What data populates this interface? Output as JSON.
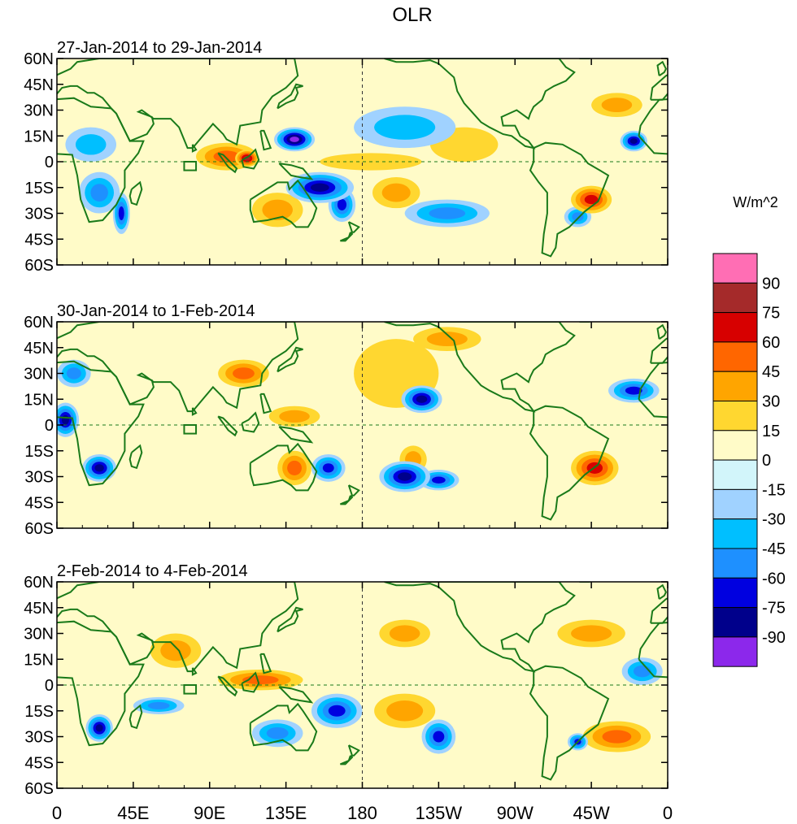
{
  "figure": {
    "title": "OLR",
    "colorbar_title": "W/m^2",
    "x_tick_labels": [
      "0",
      "45E",
      "90E",
      "135E",
      "180",
      "135W",
      "90W",
      "45W",
      "0"
    ],
    "y_tick_labels": [
      "60N",
      "45N",
      "30N",
      "15N",
      "0",
      "15S",
      "30S",
      "45S",
      "60S"
    ]
  },
  "chart_data": {
    "type": "heatmap",
    "variable": "OLR anomaly",
    "units": "W/m^2",
    "xlim_lon_east": [
      0,
      360
    ],
    "ylim_lat": [
      -60,
      60
    ],
    "x_ticks": [
      0,
      45,
      90,
      135,
      180,
      225,
      270,
      315,
      360
    ],
    "y_ticks": [
      60,
      45,
      30,
      15,
      0,
      -15,
      -30,
      -45,
      -60
    ],
    "panels": [
      {
        "subtitle": "27-Jan-2014 to 29-Jan-2014",
        "anomalies": [
          {
            "lon": 25,
            "lat": -18,
            "value": -45,
            "rx": 12,
            "ry": 12
          },
          {
            "lon": 38,
            "lat": -30,
            "value": -60,
            "rx": 5,
            "ry": 12
          },
          {
            "lon": 20,
            "lat": 10,
            "value": -30,
            "rx": 15,
            "ry": 10
          },
          {
            "lon": 100,
            "lat": 3,
            "value": 45,
            "rx": 18,
            "ry": 8
          },
          {
            "lon": 112,
            "lat": 2,
            "value": 75,
            "rx": 7,
            "ry": 5
          },
          {
            "lon": 140,
            "lat": 13,
            "value": -90,
            "rx": 12,
            "ry": 7
          },
          {
            "lon": 155,
            "lat": -15,
            "value": -75,
            "rx": 20,
            "ry": 9
          },
          {
            "lon": 168,
            "lat": -25,
            "value": -60,
            "rx": 8,
            "ry": 10
          },
          {
            "lon": 130,
            "lat": -28,
            "value": 30,
            "rx": 15,
            "ry": 10
          },
          {
            "lon": 200,
            "lat": -18,
            "value": 30,
            "rx": 14,
            "ry": 9
          },
          {
            "lon": 185,
            "lat": 0,
            "value": 15,
            "rx": 30,
            "ry": 5
          },
          {
            "lon": 230,
            "lat": -30,
            "value": -45,
            "rx": 25,
            "ry": 8
          },
          {
            "lon": 205,
            "lat": 20,
            "value": -30,
            "rx": 30,
            "ry": 12
          },
          {
            "lon": 240,
            "lat": 10,
            "value": 15,
            "rx": 20,
            "ry": 10
          },
          {
            "lon": 315,
            "lat": -22,
            "value": 60,
            "rx": 12,
            "ry": 8
          },
          {
            "lon": 307,
            "lat": -32,
            "value": -45,
            "rx": 8,
            "ry": 6
          },
          {
            "lon": 340,
            "lat": 12,
            "value": -75,
            "rx": 8,
            "ry": 6
          },
          {
            "lon": 330,
            "lat": 33,
            "value": 30,
            "rx": 15,
            "ry": 7
          }
        ]
      },
      {
        "subtitle": "30-Jan-2014 to 1-Feb-2014",
        "anomalies": [
          {
            "lon": 5,
            "lat": 3,
            "value": -75,
            "rx": 8,
            "ry": 10
          },
          {
            "lon": 25,
            "lat": -25,
            "value": -75,
            "rx": 10,
            "ry": 8
          },
          {
            "lon": 10,
            "lat": 30,
            "value": -45,
            "rx": 10,
            "ry": 8
          },
          {
            "lon": 110,
            "lat": 30,
            "value": 45,
            "rx": 15,
            "ry": 8
          },
          {
            "lon": 140,
            "lat": -25,
            "value": 45,
            "rx": 10,
            "ry": 10
          },
          {
            "lon": 160,
            "lat": -25,
            "value": -60,
            "rx": 10,
            "ry": 8
          },
          {
            "lon": 205,
            "lat": -30,
            "value": -75,
            "rx": 15,
            "ry": 9
          },
          {
            "lon": 225,
            "lat": -32,
            "value": -60,
            "rx": 12,
            "ry": 6
          },
          {
            "lon": 210,
            "lat": -20,
            "value": 30,
            "rx": 8,
            "ry": 8
          },
          {
            "lon": 215,
            "lat": 15,
            "value": -75,
            "rx": 12,
            "ry": 8
          },
          {
            "lon": 200,
            "lat": 30,
            "value": 15,
            "rx": 25,
            "ry": 20
          },
          {
            "lon": 230,
            "lat": 50,
            "value": 30,
            "rx": 20,
            "ry": 7
          },
          {
            "lon": 317,
            "lat": -25,
            "value": 60,
            "rx": 14,
            "ry": 10
          },
          {
            "lon": 340,
            "lat": 20,
            "value": -60,
            "rx": 15,
            "ry": 7
          },
          {
            "lon": 140,
            "lat": 5,
            "value": 30,
            "rx": 15,
            "ry": 6
          }
        ]
      },
      {
        "subtitle": "2-Feb-2014 to 4-Feb-2014",
        "anomalies": [
          {
            "lon": 25,
            "lat": -25,
            "value": -75,
            "rx": 8,
            "ry": 8
          },
          {
            "lon": 60,
            "lat": -12,
            "value": -45,
            "rx": 15,
            "ry": 5
          },
          {
            "lon": 120,
            "lat": 3,
            "value": 45,
            "rx": 25,
            "ry": 6
          },
          {
            "lon": 165,
            "lat": -15,
            "value": -60,
            "rx": 15,
            "ry": 10
          },
          {
            "lon": 130,
            "lat": -28,
            "value": -45,
            "rx": 15,
            "ry": 8
          },
          {
            "lon": 225,
            "lat": -30,
            "value": -60,
            "rx": 10,
            "ry": 10
          },
          {
            "lon": 205,
            "lat": -15,
            "value": 30,
            "rx": 18,
            "ry": 10
          },
          {
            "lon": 205,
            "lat": 30,
            "value": 30,
            "rx": 15,
            "ry": 8
          },
          {
            "lon": 315,
            "lat": 30,
            "value": 30,
            "rx": 20,
            "ry": 8
          },
          {
            "lon": 330,
            "lat": -30,
            "value": 45,
            "rx": 20,
            "ry": 9
          },
          {
            "lon": 307,
            "lat": -33,
            "value": -60,
            "rx": 6,
            "ry": 5
          },
          {
            "lon": 345,
            "lat": 8,
            "value": -45,
            "rx": 12,
            "ry": 8
          },
          {
            "lon": 70,
            "lat": 20,
            "value": 30,
            "rx": 15,
            "ry": 10
          }
        ]
      }
    ],
    "colorbar": {
      "labels": [
        "90",
        "75",
        "60",
        "45",
        "30",
        "15",
        "0",
        "-15",
        "-30",
        "-45",
        "-60",
        "-75",
        "-90"
      ],
      "colors": [
        "#ff6eb4",
        "#a52a2a",
        "#d70000",
        "#ff6600",
        "#ffa500",
        "#ffd730",
        "#fffbc8",
        "#d2f5fa",
        "#a0d2ff",
        "#00bfff",
        "#1e90ff",
        "#0000e0",
        "#00008b",
        "#8c28eb"
      ]
    },
    "box_marker": {
      "lon_range": [
        75,
        82
      ],
      "lat_range": [
        -5,
        0
      ]
    }
  }
}
